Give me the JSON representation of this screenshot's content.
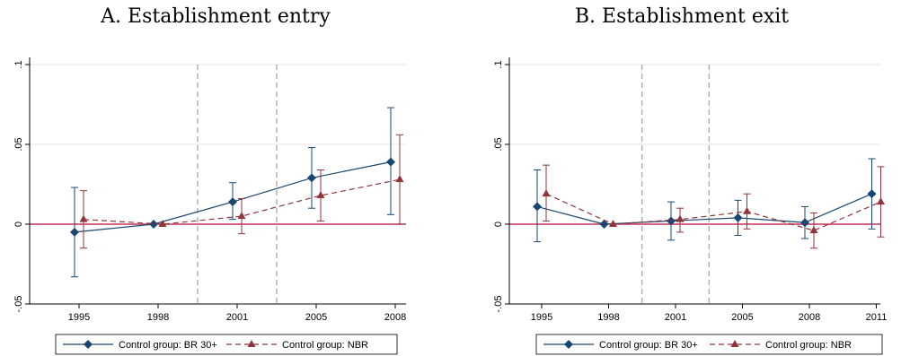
{
  "chart_data": [
    {
      "type": "line",
      "title": "A. Establishment entry",
      "x": [
        "1995",
        "1998",
        "2001",
        "2005",
        "2008"
      ],
      "ylim": [
        -0.05,
        0.1
      ],
      "yticks": [
        -0.05,
        0,
        0.05,
        0.1
      ],
      "ytick_labels": [
        "-.05",
        "0",
        ".05",
        ".1"
      ],
      "vlines_between": [
        [
          1,
          2
        ],
        [
          2,
          3
        ]
      ],
      "series": [
        {
          "name": "Control group: BR 30+",
          "color": "#1a476f",
          "marker": "diamond",
          "line_style": "solid",
          "values": [
            -0.005,
            0.0,
            0.014,
            0.029,
            0.039
          ],
          "ci_low": [
            -0.033,
            0.0,
            0.003,
            0.01,
            0.006
          ],
          "ci_high": [
            0.023,
            0.0,
            0.026,
            0.048,
            0.073
          ]
        },
        {
          "name": "Control group: NBR",
          "color": "#90353b",
          "marker": "triangle",
          "line_style": "dashed",
          "values": [
            0.003,
            0.0,
            0.005,
            0.018,
            0.028
          ],
          "ci_low": [
            -0.015,
            0.0,
            -0.006,
            0.002,
            0.0
          ],
          "ci_high": [
            0.021,
            0.0,
            0.016,
            0.034,
            0.056
          ]
        }
      ]
    },
    {
      "type": "line",
      "title": "B. Establishment exit",
      "x": [
        "1995",
        "1998",
        "2001",
        "2005",
        "2008",
        "2011"
      ],
      "ylim": [
        -0.05,
        0.1
      ],
      "yticks": [
        -0.05,
        0,
        0.05,
        0.1
      ],
      "ytick_labels": [
        "-.05",
        "0",
        ".05",
        ".1"
      ],
      "vlines_between": [
        [
          1,
          2
        ],
        [
          2,
          3
        ]
      ],
      "series": [
        {
          "name": "Control group: BR 30+",
          "color": "#1a476f",
          "marker": "diamond",
          "line_style": "solid",
          "values": [
            0.011,
            0.0,
            0.002,
            0.004,
            0.001,
            0.019
          ],
          "ci_low": [
            -0.011,
            0.0,
            -0.01,
            -0.007,
            -0.009,
            -0.003
          ],
          "ci_high": [
            0.034,
            0.0,
            0.014,
            0.015,
            0.011,
            0.041
          ]
        },
        {
          "name": "Control group: NBR",
          "color": "#90353b",
          "marker": "triangle",
          "line_style": "dashed",
          "values": [
            0.019,
            0.0,
            0.003,
            0.008,
            -0.004,
            0.014
          ],
          "ci_low": [
            0.002,
            0.0,
            -0.005,
            -0.003,
            -0.015,
            -0.008
          ],
          "ci_high": [
            0.037,
            0.0,
            0.01,
            0.019,
            0.007,
            0.036
          ]
        }
      ]
    }
  ]
}
